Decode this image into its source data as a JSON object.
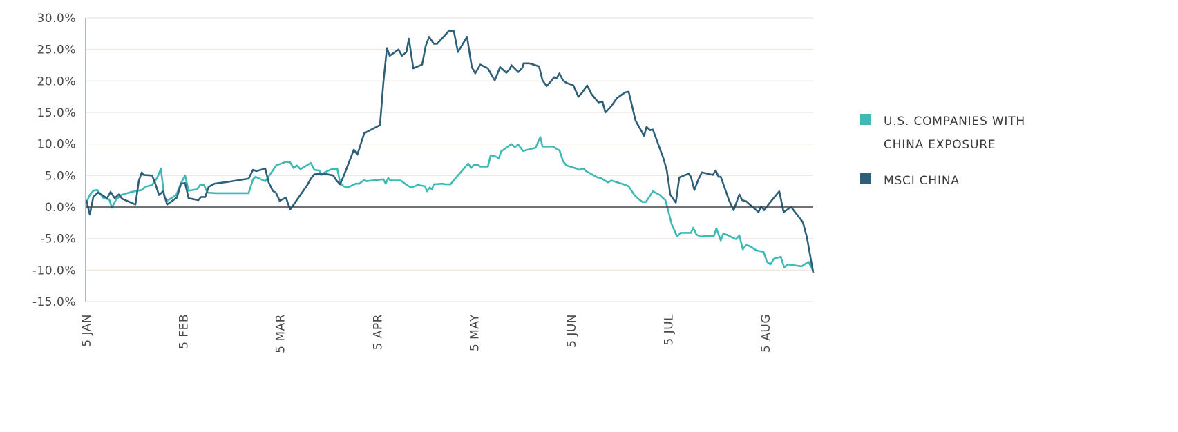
{
  "chart_data": {
    "type": "line",
    "title": "",
    "xlabel": "",
    "ylabel": "",
    "ylim": [
      -15,
      30
    ],
    "xlim": [
      0,
      231.2
    ],
    "grid": true,
    "legend_position": "right",
    "yticks": [
      {
        "value": 30,
        "label": "30.0%"
      },
      {
        "value": 25,
        "label": "25.0%"
      },
      {
        "value": 20,
        "label": "20.0%"
      },
      {
        "value": 15,
        "label": "15.0%"
      },
      {
        "value": 10,
        "label": "10.0%"
      },
      {
        "value": 5,
        "label": "5.0%"
      },
      {
        "value": 0,
        "label": "0.0%"
      },
      {
        "value": -5,
        "label": "-5.0%"
      },
      {
        "value": -10,
        "label": "-10.0%"
      },
      {
        "value": -15,
        "label": "-15.0%"
      }
    ],
    "xticks": [
      {
        "value": 0,
        "label": "5 JAN"
      },
      {
        "value": 30.9,
        "label": "5 FEB"
      },
      {
        "value": 61.7,
        "label": "5 MAR"
      },
      {
        "value": 92.6,
        "label": "5 APR"
      },
      {
        "value": 123.4,
        "label": "5 MAY"
      },
      {
        "value": 154.3,
        "label": "5 JUN"
      },
      {
        "value": 185.2,
        "label": "5 JUL"
      },
      {
        "value": 216.0,
        "label": "5 AUG"
      }
    ],
    "series": [
      {
        "name": "U.S. COMPANIES WITH CHINA EXPOSURE",
        "legend_lines": [
          "U.S. COMPANIES WITH",
          "CHINA EXPOSURE"
        ],
        "color": "#3dbab5",
        "points": [
          [
            0,
            0.7
          ],
          [
            1.1,
            1.9
          ],
          [
            2.2,
            2.6
          ],
          [
            3.5,
            2.7
          ],
          [
            5.5,
            1.4
          ],
          [
            7.3,
            1.2
          ],
          [
            8.1,
            -0.1
          ],
          [
            9.5,
            1.2
          ],
          [
            11.0,
            1.9
          ],
          [
            14.3,
            2.4
          ],
          [
            17.6,
            2.7
          ],
          [
            18.7,
            3.2
          ],
          [
            20.9,
            3.5
          ],
          [
            22.6,
            4.7
          ],
          [
            23.7,
            6.1
          ],
          [
            24.8,
            1.6
          ],
          [
            25.7,
            1.0
          ],
          [
            28.6,
            1.9
          ],
          [
            30.1,
            3.8
          ],
          [
            31.4,
            5.0
          ],
          [
            32.5,
            2.6
          ],
          [
            35.2,
            2.8
          ],
          [
            36.3,
            3.6
          ],
          [
            37.4,
            3.5
          ],
          [
            38.5,
            2.3
          ],
          [
            41.1,
            2.2
          ],
          [
            51.6,
            2.2
          ],
          [
            53.0,
            4.4
          ],
          [
            53.8,
            4.8
          ],
          [
            56.9,
            4.1
          ],
          [
            58.2,
            5.0
          ],
          [
            60.4,
            6.6
          ],
          [
            63.7,
            7.2
          ],
          [
            64.8,
            7.1
          ],
          [
            65.9,
            6.2
          ],
          [
            67.0,
            6.6
          ],
          [
            68.1,
            6.0
          ],
          [
            71.4,
            7.0
          ],
          [
            72.5,
            5.9
          ],
          [
            74.1,
            5.8
          ],
          [
            74.7,
            5.1
          ],
          [
            75.8,
            5.5
          ],
          [
            78.0,
            6.0
          ],
          [
            79.8,
            6.1
          ],
          [
            80.7,
            3.9
          ],
          [
            81.8,
            3.3
          ],
          [
            83.1,
            3.1
          ],
          [
            85.7,
            3.7
          ],
          [
            86.8,
            3.7
          ],
          [
            88.4,
            4.3
          ],
          [
            89.0,
            4.1
          ],
          [
            94.5,
            4.4
          ],
          [
            95.2,
            3.7
          ],
          [
            96.0,
            4.6
          ],
          [
            96.7,
            4.2
          ],
          [
            100.0,
            4.2
          ],
          [
            102.2,
            3.4
          ],
          [
            103.3,
            3.1
          ],
          [
            105.5,
            3.5
          ],
          [
            107.7,
            3.3
          ],
          [
            108.4,
            2.5
          ],
          [
            109.2,
            3.1
          ],
          [
            109.9,
            2.8
          ],
          [
            110.5,
            3.6
          ],
          [
            113.2,
            3.7
          ],
          [
            114.3,
            3.6
          ],
          [
            115.8,
            3.6
          ],
          [
            118.7,
            5.3
          ],
          [
            121.5,
            6.9
          ],
          [
            122.4,
            6.2
          ],
          [
            123.3,
            6.7
          ],
          [
            124.6,
            6.7
          ],
          [
            125.3,
            6.4
          ],
          [
            127.7,
            6.4
          ],
          [
            128.6,
            8.2
          ],
          [
            130.3,
            8.0
          ],
          [
            131.2,
            7.7
          ],
          [
            131.9,
            8.8
          ],
          [
            135.2,
            10.0
          ],
          [
            136.3,
            9.5
          ],
          [
            137.4,
            9.9
          ],
          [
            138.9,
            8.9
          ],
          [
            142.9,
            9.4
          ],
          [
            144.4,
            11.1
          ],
          [
            145.1,
            9.6
          ],
          [
            148.4,
            9.6
          ],
          [
            149.7,
            9.2
          ],
          [
            150.5,
            9.0
          ],
          [
            151.6,
            7.3
          ],
          [
            152.7,
            6.6
          ],
          [
            156.0,
            6.1
          ],
          [
            156.7,
            5.9
          ],
          [
            158.2,
            6.1
          ],
          [
            158.9,
            5.7
          ],
          [
            162.6,
            4.7
          ],
          [
            163.7,
            4.6
          ],
          [
            165.9,
            3.9
          ],
          [
            167.0,
            4.2
          ],
          [
            170.3,
            3.7
          ],
          [
            172.5,
            3.3
          ],
          [
            174.3,
            1.9
          ],
          [
            175.8,
            1.2
          ],
          [
            176.9,
            0.8
          ],
          [
            178.0,
            0.8
          ],
          [
            180.2,
            2.5
          ],
          [
            182.4,
            1.9
          ],
          [
            184.2,
            1.1
          ],
          [
            186.2,
            -2.7
          ],
          [
            187.9,
            -4.7
          ],
          [
            189.0,
            -4.1
          ],
          [
            192.3,
            -4.1
          ],
          [
            193.0,
            -3.3
          ],
          [
            194.1,
            -4.4
          ],
          [
            195.6,
            -4.7
          ],
          [
            196.7,
            -4.6
          ],
          [
            199.6,
            -4.6
          ],
          [
            200.4,
            -3.4
          ],
          [
            201.8,
            -5.3
          ],
          [
            202.6,
            -4.2
          ],
          [
            203.7,
            -4.4
          ],
          [
            206.6,
            -5.1
          ],
          [
            207.7,
            -4.5
          ],
          [
            208.8,
            -6.7
          ],
          [
            209.9,
            -6.0
          ],
          [
            211.0,
            -6.2
          ],
          [
            213.2,
            -6.9
          ],
          [
            215.4,
            -7.1
          ],
          [
            216.5,
            -8.7
          ],
          [
            217.6,
            -9.1
          ],
          [
            218.7,
            -8.2
          ],
          [
            220.9,
            -7.9
          ],
          [
            222.0,
            -9.6
          ],
          [
            223.1,
            -9.1
          ],
          [
            227.5,
            -9.4
          ],
          [
            229.7,
            -8.7
          ],
          [
            231.2,
            -10.1
          ]
        ]
      },
      {
        "name": "MSCI CHINA",
        "legend_lines": [
          "MSCI CHINA"
        ],
        "color": "#2e5f78",
        "points": [
          [
            0,
            1.1
          ],
          [
            1.1,
            -1.2
          ],
          [
            2.2,
            1.6
          ],
          [
            3.7,
            2.3
          ],
          [
            6.6,
            1.4
          ],
          [
            7.7,
            2.4
          ],
          [
            9.0,
            1.4
          ],
          [
            10.3,
            2.0
          ],
          [
            11.4,
            1.3
          ],
          [
            15.6,
            0.4
          ],
          [
            16.7,
            4.2
          ],
          [
            17.6,
            5.5
          ],
          [
            18.2,
            5.1
          ],
          [
            20.9,
            5.0
          ],
          [
            21.8,
            3.9
          ],
          [
            23.1,
            1.9
          ],
          [
            24.4,
            2.5
          ],
          [
            25.7,
            0.4
          ],
          [
            28.8,
            1.5
          ],
          [
            30.1,
            3.7
          ],
          [
            31.4,
            3.8
          ],
          [
            32.5,
            1.4
          ],
          [
            35.6,
            1.1
          ],
          [
            36.5,
            1.6
          ],
          [
            37.8,
            1.6
          ],
          [
            38.9,
            3.2
          ],
          [
            40.7,
            3.7
          ],
          [
            45.1,
            4.0
          ],
          [
            51.6,
            4.5
          ],
          [
            53.0,
            5.9
          ],
          [
            54.1,
            5.7
          ],
          [
            56.9,
            6.1
          ],
          [
            58.0,
            3.9
          ],
          [
            59.3,
            2.6
          ],
          [
            60.4,
            2.2
          ],
          [
            61.5,
            1.0
          ],
          [
            63.5,
            1.5
          ],
          [
            64.8,
            -0.4
          ],
          [
            70.3,
            3.5
          ],
          [
            71.4,
            4.5
          ],
          [
            72.5,
            5.2
          ],
          [
            75.8,
            5.3
          ],
          [
            78.5,
            5.0
          ],
          [
            79.6,
            4.2
          ],
          [
            80.7,
            3.6
          ],
          [
            82.0,
            5.1
          ],
          [
            85.1,
            9.1
          ],
          [
            86.2,
            8.3
          ],
          [
            88.4,
            11.7
          ],
          [
            93.4,
            13.0
          ],
          [
            94.5,
            19.9
          ],
          [
            95.6,
            25.2
          ],
          [
            96.5,
            24.0
          ],
          [
            99.3,
            25.0
          ],
          [
            100.4,
            24.0
          ],
          [
            101.8,
            24.6
          ],
          [
            102.6,
            26.7
          ],
          [
            104.0,
            22.0
          ],
          [
            106.8,
            22.6
          ],
          [
            107.9,
            25.5
          ],
          [
            109.0,
            27.0
          ],
          [
            110.5,
            25.9
          ],
          [
            111.6,
            25.9
          ],
          [
            114.3,
            27.4
          ],
          [
            115.4,
            28.0
          ],
          [
            116.9,
            27.9
          ],
          [
            118.2,
            24.6
          ],
          [
            121.1,
            27.0
          ],
          [
            122.6,
            22.2
          ],
          [
            123.7,
            21.2
          ],
          [
            125.3,
            22.6
          ],
          [
            127.7,
            22.0
          ],
          [
            128.6,
            21.2
          ],
          [
            129.9,
            20.1
          ],
          [
            130.8,
            21.2
          ],
          [
            131.6,
            22.2
          ],
          [
            133.6,
            21.3
          ],
          [
            134.7,
            21.9
          ],
          [
            135.2,
            22.5
          ],
          [
            137.4,
            21.4
          ],
          [
            138.7,
            22.1
          ],
          [
            139.1,
            22.8
          ],
          [
            140.9,
            22.8
          ],
          [
            144.0,
            22.3
          ],
          [
            145.1,
            20.1
          ],
          [
            146.4,
            19.2
          ],
          [
            147.7,
            19.9
          ],
          [
            148.8,
            20.6
          ],
          [
            149.5,
            20.4
          ],
          [
            150.5,
            21.2
          ],
          [
            151.6,
            20.1
          ],
          [
            152.7,
            19.7
          ],
          [
            154.9,
            19.3
          ],
          [
            155.6,
            18.5
          ],
          [
            156.5,
            17.5
          ],
          [
            157.8,
            18.2
          ],
          [
            159.3,
            19.3
          ],
          [
            160.7,
            17.9
          ],
          [
            162.9,
            16.6
          ],
          [
            164.2,
            16.7
          ],
          [
            165.1,
            15.0
          ],
          [
            166.8,
            15.9
          ],
          [
            168.8,
            17.3
          ],
          [
            171.4,
            18.2
          ],
          [
            172.5,
            18.3
          ],
          [
            173.8,
            15.6
          ],
          [
            174.7,
            13.7
          ],
          [
            177.4,
            11.3
          ],
          [
            178.2,
            12.7
          ],
          [
            179.3,
            12.2
          ],
          [
            180.2,
            12.3
          ],
          [
            183.5,
            7.8
          ],
          [
            184.6,
            5.9
          ],
          [
            185.3,
            3.6
          ],
          [
            185.7,
            2.0
          ],
          [
            187.5,
            0.7
          ],
          [
            188.6,
            4.7
          ],
          [
            191.6,
            5.3
          ],
          [
            192.3,
            4.8
          ],
          [
            193.4,
            2.7
          ],
          [
            194.7,
            4.4
          ],
          [
            195.8,
            5.5
          ],
          [
            199.3,
            5.1
          ],
          [
            200.2,
            5.8
          ],
          [
            201.1,
            4.8
          ],
          [
            201.8,
            4.8
          ],
          [
            204.4,
            1.1
          ],
          [
            205.9,
            -0.5
          ],
          [
            207.7,
            2.0
          ],
          [
            208.6,
            1.1
          ],
          [
            209.9,
            0.9
          ],
          [
            213.8,
            -0.8
          ],
          [
            214.7,
            0.1
          ],
          [
            215.6,
            -0.5
          ],
          [
            217.6,
            0.8
          ],
          [
            220.4,
            2.5
          ],
          [
            221.8,
            -0.8
          ],
          [
            224.2,
            0.0
          ],
          [
            227.9,
            -2.4
          ],
          [
            229.2,
            -4.8
          ],
          [
            231.2,
            -10.4
          ]
        ]
      }
    ]
  }
}
